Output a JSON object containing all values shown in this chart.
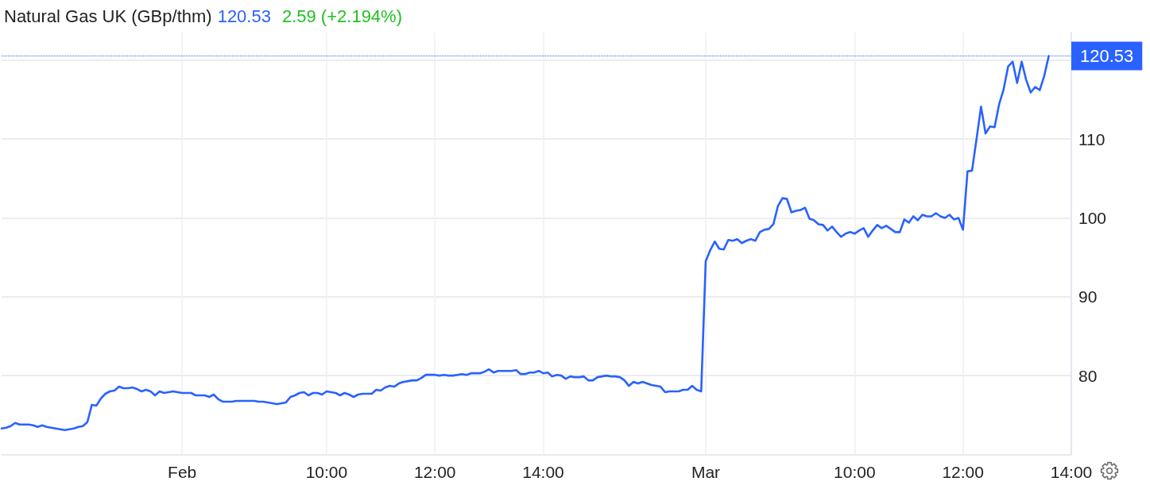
{
  "chart_data": {
    "type": "line",
    "title": "Natural Gas UK (GBp/thm)",
    "annotations": [
      "120.53",
      "2.59 (+2.194%)"
    ],
    "categories": [
      null,
      null,
      null,
      null,
      null,
      null,
      null,
      null,
      null,
      null,
      null,
      null,
      null,
      null,
      null,
      null,
      null,
      null,
      null,
      null,
      null,
      null,
      null,
      null,
      null,
      null,
      null,
      null,
      null,
      null,
      null,
      null,
      null,
      null,
      null,
      null,
      null,
      null,
      null,
      null,
      "Feb",
      null,
      null,
      null,
      null,
      null,
      null,
      null,
      null,
      null,
      null,
      null,
      null,
      null,
      null,
      null,
      null,
      null,
      null,
      null,
      null,
      null,
      null,
      null,
      null,
      null,
      null,
      null,
      null,
      null,
      null,
      null,
      "10:00",
      null,
      null,
      null,
      null,
      null,
      null,
      null,
      null,
      null,
      null,
      null,
      null,
      null,
      null,
      null,
      null,
      null,
      null,
      null,
      null,
      null,
      null,
      null,
      "12:00",
      null,
      null,
      null,
      null,
      null,
      null,
      null,
      null,
      null,
      null,
      null,
      null,
      null,
      null,
      null,
      null,
      null,
      null,
      null,
      null,
      null,
      null,
      null,
      "14:00",
      null,
      null,
      null,
      null,
      null,
      null,
      null,
      null,
      null,
      null,
      null,
      null,
      null,
      null,
      null,
      null,
      null,
      null,
      null,
      null,
      null,
      null,
      null,
      null,
      null,
      null,
      null,
      null,
      null,
      null,
      null,
      null,
      null,
      null,
      null,
      "Mar",
      null,
      null,
      null,
      null,
      null,
      null,
      null,
      null,
      null,
      null,
      null,
      null,
      null,
      null,
      null,
      null,
      null,
      null,
      null,
      null,
      null,
      null,
      null,
      null,
      null,
      null,
      null,
      null,
      null,
      null,
      null,
      null,
      "10:00",
      null,
      null,
      null,
      null,
      null,
      null,
      null,
      null,
      null,
      null,
      null,
      null,
      null,
      null,
      null,
      null,
      null,
      null,
      null,
      null,
      null,
      null,
      null,
      "12:00",
      null,
      null,
      null,
      null,
      null,
      null,
      null,
      null,
      null,
      null,
      null,
      null,
      null,
      null,
      null,
      null,
      null,
      null,
      null,
      null,
      null,
      null,
      null,
      "14:00"
    ],
    "values": [
      73.3,
      73.4,
      73.6,
      74.0,
      73.8,
      73.8,
      73.8,
      73.7,
      73.5,
      73.7,
      73.5,
      73.4,
      73.3,
      73.2,
      73.1,
      73.2,
      73.3,
      73.5,
      73.6,
      74.1,
      76.3,
      76.2,
      77.1,
      77.7,
      78.0,
      78.1,
      78.6,
      78.4,
      78.4,
      78.5,
      78.3,
      78.0,
      78.2,
      78.0,
      77.5,
      78.0,
      77.8,
      77.9,
      78.0,
      77.9,
      77.8,
      77.8,
      77.8,
      77.5,
      77.5,
      77.5,
      77.3,
      77.6,
      77.0,
      76.7,
      76.7,
      76.7,
      76.8,
      76.8,
      76.8,
      76.8,
      76.8,
      76.7,
      76.7,
      76.6,
      76.5,
      76.4,
      76.5,
      76.6,
      77.3,
      77.5,
      77.8,
      77.9,
      77.5,
      77.8,
      77.8,
      77.6,
      78.0,
      77.9,
      77.8,
      77.5,
      77.8,
      77.6,
      77.3,
      77.6,
      77.7,
      77.7,
      77.7,
      78.2,
      78.1,
      78.5,
      78.7,
      78.6,
      79.0,
      79.2,
      79.3,
      79.4,
      79.4,
      79.7,
      80.1,
      80.1,
      80.1,
      80.0,
      80.1,
      80.0,
      80.0,
      80.1,
      80.2,
      80.1,
      80.3,
      80.3,
      80.3,
      80.5,
      80.8,
      80.4,
      80.6,
      80.6,
      80.6,
      80.6,
      80.7,
      80.2,
      80.2,
      80.4,
      80.4,
      80.6,
      80.3,
      80.4,
      79.9,
      80.1,
      80.0,
      79.6,
      79.9,
      79.8,
      79.8,
      79.9,
      79.4,
      79.4,
      79.8,
      79.9,
      80.0,
      79.9,
      79.9,
      79.8,
      79.4,
      78.7,
      79.2,
      79.0,
      79.2,
      79.0,
      78.8,
      78.7,
      78.6,
      77.9,
      78.0,
      78.0,
      78.0,
      78.2,
      78.2,
      78.7,
      78.2,
      78.0,
      94.5,
      95.9,
      97.0,
      96.1,
      96.0,
      97.2,
      97.1,
      97.3,
      96.8,
      97.1,
      97.3,
      97.1,
      98.2,
      98.5,
      98.6,
      99.2,
      101.5,
      102.5,
      102.4,
      100.7,
      100.9,
      101.0,
      101.3,
      99.9,
      99.7,
      99.2,
      99.1,
      98.4,
      98.9,
      98.2,
      97.6,
      98.0,
      98.2,
      98.0,
      98.4,
      98.7,
      97.6,
      98.4,
      99.1,
      98.7,
      99.0,
      98.6,
      98.2,
      98.2,
      99.8,
      99.4,
      100.2,
      99.7,
      100.4,
      100.2,
      100.2,
      100.6,
      100.2,
      100.0,
      100.4,
      99.8,
      100.0,
      98.5,
      105.9,
      106.0,
      110.0,
      114.1,
      110.7,
      111.6,
      111.5,
      114.4,
      116.3,
      119.2,
      119.8,
      117.1,
      119.8,
      117.5,
      115.9,
      116.6,
      116.2,
      118.0,
      120.53,
      null,
      null,
      null,
      null,
      null
    ],
    "color": "#2962ff",
    "ylim": [
      70,
      123.5
    ],
    "yticks": [
      80,
      90,
      100,
      110,
      {
        "value": 120,
        "label": null
      }
    ],
    "grid": true,
    "ref_lines": [
      {
        "axis": "y",
        "value": 120.53,
        "label": "120.53",
        "color": "#2962ff",
        "line_style": "dotted"
      }
    ]
  }
}
